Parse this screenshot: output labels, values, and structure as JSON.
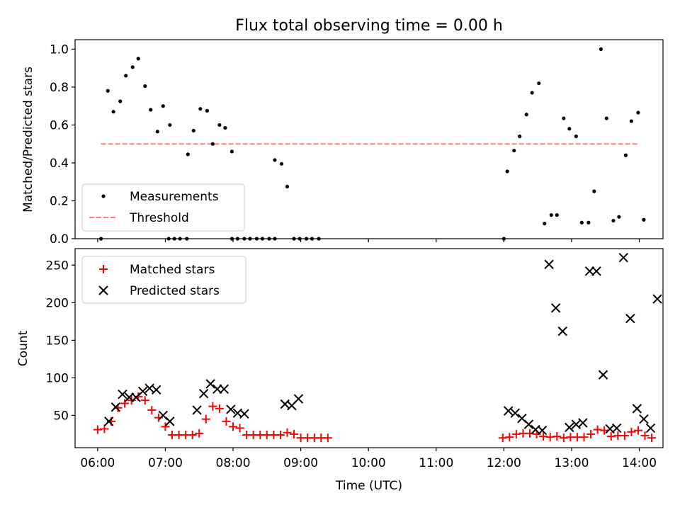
{
  "chart_data": [
    {
      "type": "scatter",
      "title": "Flux total observing time = 0.00 h",
      "ylabel": "Matched/Predicted stars",
      "xlabel": "",
      "xlim": [
        "05:40",
        "14:21"
      ],
      "ylim": [
        0,
        1.05
      ],
      "yticks": [
        "0.0",
        "0.2",
        "0.4",
        "0.6",
        "0.8",
        "1.0"
      ],
      "legend_position": "lower-left",
      "threshold": {
        "name": "Threshold",
        "value": 0.5,
        "x": [
          "06:03",
          "13:59"
        ],
        "color": "#ff7f7f"
      },
      "measurements": {
        "name": "Measurements",
        "color": "#000000",
        "points": [
          [
            "06:03",
            0.0
          ],
          [
            "06:09",
            0.78
          ],
          [
            "06:14",
            0.67
          ],
          [
            "06:20",
            0.725
          ],
          [
            "06:25",
            0.86
          ],
          [
            "06:31",
            0.905
          ],
          [
            "06:36",
            0.95
          ],
          [
            "06:42",
            0.805
          ],
          [
            "06:47",
            0.68
          ],
          [
            "06:53",
            0.565
          ],
          [
            "06:58",
            0.7
          ],
          [
            "07:04",
            0.6
          ],
          [
            "07:03",
            0.0
          ],
          [
            "07:08",
            0.0
          ],
          [
            "07:13",
            0.0
          ],
          [
            "07:19",
            0.0
          ],
          [
            "07:20",
            0.445
          ],
          [
            "07:25",
            0.57
          ],
          [
            "07:31",
            0.685
          ],
          [
            "07:37",
            0.675
          ],
          [
            "07:42",
            0.5
          ],
          [
            "07:48",
            0.6
          ],
          [
            "07:53",
            0.585
          ],
          [
            "07:59",
            0.46
          ],
          [
            "07:59",
            0.0
          ],
          [
            "08:04",
            0.0
          ],
          [
            "08:10",
            0.0
          ],
          [
            "08:15",
            0.0
          ],
          [
            "08:21",
            0.0
          ],
          [
            "08:26",
            0.0
          ],
          [
            "08:32",
            0.0
          ],
          [
            "08:37",
            0.0
          ],
          [
            "08:37",
            0.415
          ],
          [
            "08:43",
            0.395
          ],
          [
            "08:48",
            0.275
          ],
          [
            "08:54",
            0.0
          ],
          [
            "08:59",
            0.0
          ],
          [
            "09:05",
            0.0
          ],
          [
            "09:10",
            0.0
          ],
          [
            "09:16",
            0.0
          ],
          [
            "12:00",
            0.0
          ],
          [
            "12:03",
            0.355
          ],
          [
            "12:09",
            0.465
          ],
          [
            "12:14",
            0.54
          ],
          [
            "12:20",
            0.655
          ],
          [
            "12:25",
            0.77
          ],
          [
            "12:31",
            0.82
          ],
          [
            "12:36",
            0.08
          ],
          [
            "12:42",
            0.125
          ],
          [
            "12:47",
            0.125
          ],
          [
            "12:53",
            0.635
          ],
          [
            "12:58",
            0.58
          ],
          [
            "13:04",
            0.54
          ],
          [
            "13:09",
            0.085
          ],
          [
            "13:15",
            0.085
          ],
          [
            "13:20",
            0.25
          ],
          [
            "13:26",
            1.0
          ],
          [
            "13:31",
            0.635
          ],
          [
            "13:37",
            0.095
          ],
          [
            "13:42",
            0.115
          ],
          [
            "13:48",
            0.44
          ],
          [
            "13:53",
            0.62
          ],
          [
            "13:59",
            0.665
          ],
          [
            "14:04",
            0.1
          ]
        ]
      },
      "shared_xticks": [
        "06:00",
        "07:00",
        "08:00",
        "09:00",
        "10:00",
        "11:00",
        "12:00",
        "13:00",
        "14:00"
      ]
    },
    {
      "type": "scatter",
      "title": "",
      "ylabel": "Count",
      "xlabel": "Time (UTC)",
      "xlim": [
        "05:40",
        "14:21"
      ],
      "ylim": [
        7,
        272
      ],
      "xticks": [
        "06:00",
        "07:00",
        "08:00",
        "09:00",
        "10:00",
        "11:00",
        "12:00",
        "13:00",
        "14:00"
      ],
      "yticks": [
        "50",
        "100",
        "150",
        "200",
        "250"
      ],
      "legend_position": "upper-left",
      "series": [
        {
          "name": "Matched stars",
          "marker": "plus",
          "color": "#ff0000",
          "points": [
            [
              "06:00",
              31
            ],
            [
              "06:06",
              32
            ],
            [
              "06:12",
              42
            ],
            [
              "06:18",
              60
            ],
            [
              "06:24",
              66
            ],
            [
              "06:30",
              70
            ],
            [
              "06:36",
              75
            ],
            [
              "06:42",
              70
            ],
            [
              "06:48",
              57
            ],
            [
              "06:54",
              47
            ],
            [
              "07:00",
              35
            ],
            [
              "07:06",
              24
            ],
            [
              "07:12",
              24
            ],
            [
              "07:18",
              24
            ],
            [
              "07:24",
              24
            ],
            [
              "07:30",
              26
            ],
            [
              "07:36",
              45
            ],
            [
              "07:42",
              62
            ],
            [
              "07:48",
              59
            ],
            [
              "07:54",
              42
            ],
            [
              "08:00",
              35
            ],
            [
              "08:06",
              33
            ],
            [
              "08:12",
              24
            ],
            [
              "08:18",
              24
            ],
            [
              "08:24",
              24
            ],
            [
              "08:30",
              24
            ],
            [
              "08:36",
              24
            ],
            [
              "08:42",
              24
            ],
            [
              "08:48",
              27
            ],
            [
              "08:54",
              25
            ],
            [
              "09:00",
              20
            ],
            [
              "09:06",
              20
            ],
            [
              "09:12",
              20
            ],
            [
              "09:18",
              20
            ],
            [
              "09:24",
              20
            ],
            [
              "11:59",
              20
            ],
            [
              "12:05",
              21
            ],
            [
              "12:11",
              25
            ],
            [
              "12:17",
              26
            ],
            [
              "12:23",
              26
            ],
            [
              "12:29",
              25
            ],
            [
              "12:35",
              22
            ],
            [
              "12:41",
              21
            ],
            [
              "12:47",
              22
            ],
            [
              "12:53",
              20
            ],
            [
              "12:59",
              21
            ],
            [
              "13:05",
              21
            ],
            [
              "13:11",
              21
            ],
            [
              "13:17",
              25
            ],
            [
              "13:23",
              31
            ],
            [
              "13:29",
              30
            ],
            [
              "13:35",
              22
            ],
            [
              "13:41",
              23
            ],
            [
              "13:47",
              23
            ],
            [
              "13:53",
              28
            ],
            [
              "13:59",
              30
            ],
            [
              "14:05",
              23
            ],
            [
              "14:11",
              20
            ]
          ]
        },
        {
          "name": "Predicted stars",
          "marker": "x",
          "color": "#000000",
          "points": [
            [
              "06:10",
              42
            ],
            [
              "06:16",
              61
            ],
            [
              "06:22",
              78
            ],
            [
              "06:28",
              74
            ],
            [
              "06:34",
              74
            ],
            [
              "06:40",
              82
            ],
            [
              "06:46",
              86
            ],
            [
              "06:52",
              84
            ],
            [
              "06:58",
              50
            ],
            [
              "07:04",
              42
            ],
            [
              "07:28",
              57
            ],
            [
              "07:34",
              79
            ],
            [
              "07:40",
              92
            ],
            [
              "07:46",
              85
            ],
            [
              "07:52",
              85
            ],
            [
              "07:58",
              58
            ],
            [
              "08:04",
              53
            ],
            [
              "08:10",
              52
            ],
            [
              "08:46",
              65
            ],
            [
              "08:52",
              63
            ],
            [
              "08:58",
              72
            ],
            [
              "12:04",
              56
            ],
            [
              "12:10",
              53
            ],
            [
              "12:16",
              46
            ],
            [
              "12:22",
              38
            ],
            [
              "12:28",
              31
            ],
            [
              "12:34",
              30
            ],
            [
              "12:40",
              251
            ],
            [
              "12:46",
              193
            ],
            [
              "12:52",
              162
            ],
            [
              "12:58",
              34
            ],
            [
              "13:04",
              38
            ],
            [
              "13:10",
              40
            ],
            [
              "13:16",
              242
            ],
            [
              "13:22",
              242
            ],
            [
              "13:28",
              104
            ],
            [
              "13:34",
              32
            ],
            [
              "13:40",
              33
            ],
            [
              "13:46",
              260
            ],
            [
              "13:52",
              179
            ],
            [
              "13:58",
              59
            ],
            [
              "14:04",
              45
            ],
            [
              "14:10",
              33
            ],
            [
              "14:16",
              205
            ]
          ]
        }
      ]
    }
  ]
}
